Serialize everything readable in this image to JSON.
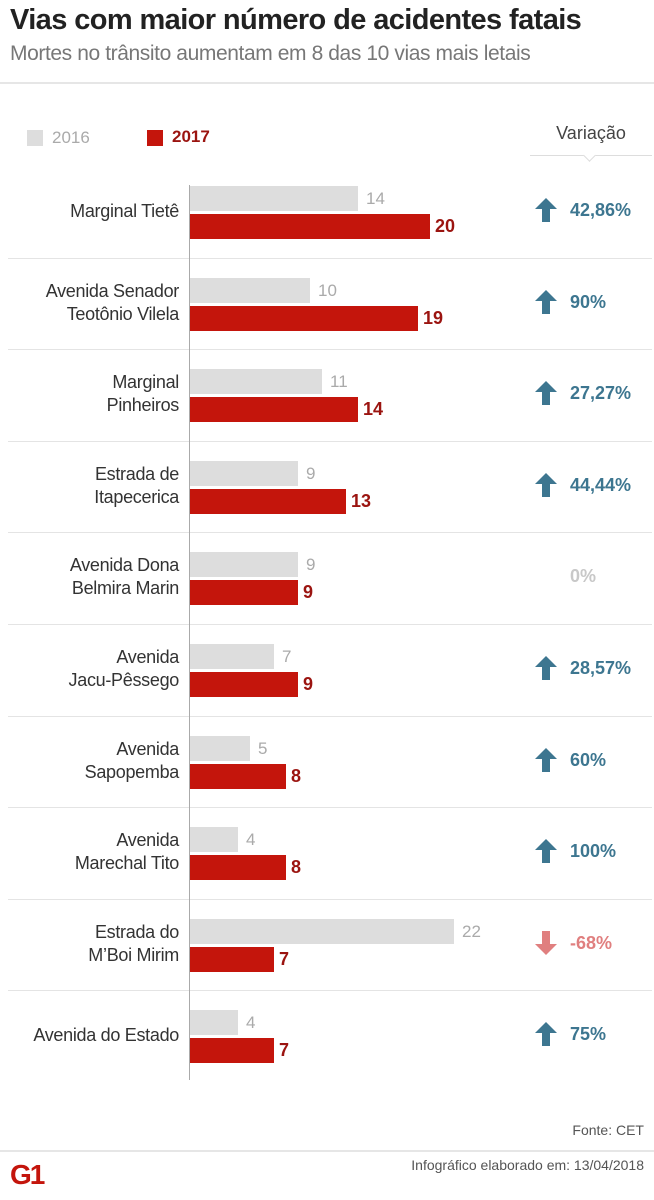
{
  "title": "Vias com maior número de acidentes fatais",
  "subtitle": "Mortes no trânsito aumentam em 8 das 10 vias mais letais",
  "variation_header": "Variação",
  "source": "Fonte: CET",
  "credit": "Infográfico elaborado em: 13/04/2018",
  "logo_text": "G1",
  "colors": {
    "s2016": "#dddddd",
    "s2017": "#c4150c",
    "up": "#3d7690",
    "down": "#e07f7f",
    "neutral": "#c8c8c8",
    "label2017": "#9b1410",
    "label2016": "#aaaaaa"
  },
  "chart_data": {
    "type": "bar",
    "orientation": "horizontal",
    "legend": "top-left",
    "categories": [
      "Marginal Tietê",
      "Avenida Senador Teotônio Vilela",
      "Marginal Pinheiros",
      "Estrada de Itapecerica",
      "Avenida Dona Belmira Marin",
      "Avenida Jacu-Pêssego",
      "Avenida Sapopemba",
      "Avenida Marechal Tito",
      "Estrada do M'Boi Mirim",
      "Avenida do Estado"
    ],
    "category_lines": [
      [
        "Marginal Tietê"
      ],
      [
        "Avenida Senador",
        "Teotônio Vilela"
      ],
      [
        "Marginal",
        "Pinheiros"
      ],
      [
        "Estrada de",
        "Itapecerica"
      ],
      [
        "Avenida Dona",
        "Belmira Marin"
      ],
      [
        "Avenida",
        "Jacu-Pêssego"
      ],
      [
        "Avenida",
        "Sapopemba"
      ],
      [
        "Avenida",
        "Marechal Tito"
      ],
      [
        "Estrada do",
        "M’Boi Mirim"
      ],
      [
        "Avenida do Estado"
      ]
    ],
    "series": [
      {
        "name": "2016",
        "values": [
          14,
          10,
          11,
          9,
          9,
          7,
          5,
          4,
          22,
          4
        ]
      },
      {
        "name": "2017",
        "values": [
          20,
          19,
          14,
          13,
          9,
          9,
          8,
          8,
          7,
          7
        ]
      }
    ],
    "variation": [
      {
        "text": "42,86%",
        "direction": "up"
      },
      {
        "text": "90%",
        "direction": "up"
      },
      {
        "text": "27,27%",
        "direction": "up"
      },
      {
        "text": "44,44%",
        "direction": "up"
      },
      {
        "text": "0%",
        "direction": "none"
      },
      {
        "text": "28,57%",
        "direction": "up"
      },
      {
        "text": "60%",
        "direction": "up"
      },
      {
        "text": "100%",
        "direction": "up"
      },
      {
        "text": "-68%",
        "direction": "down"
      },
      {
        "text": "75%",
        "direction": "up"
      }
    ],
    "xlim": [
      0,
      22
    ]
  }
}
